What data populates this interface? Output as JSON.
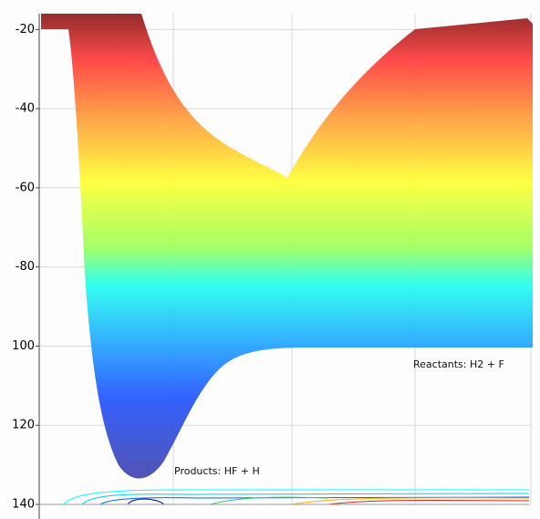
{
  "chart_data": {
    "type": "surface",
    "ylim": [
      -140,
      -16
    ],
    "yticks": [
      -20,
      -40,
      -60,
      -80,
      {
        "value": -100,
        "label": "100"
      },
      {
        "value": -120,
        "label": "120"
      },
      {
        "value": -140,
        "label": "140"
      }
    ],
    "grid": true,
    "annotations": [
      "Products: HF + H",
      "Reactants: H2 + F"
    ]
  }
}
